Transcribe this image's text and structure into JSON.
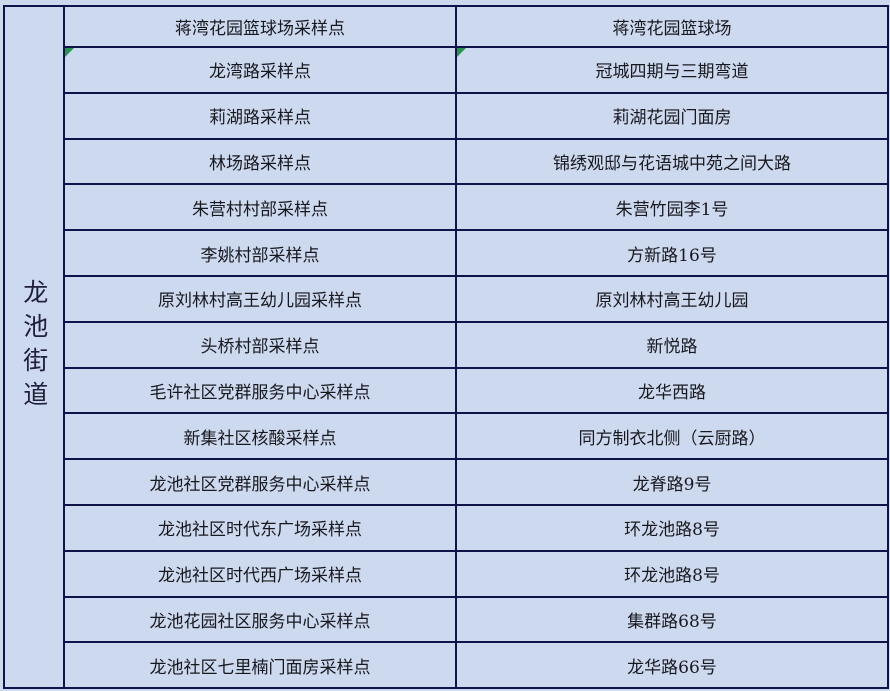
{
  "palette": {
    "background": "#cdd9ee",
    "border": "#10134a",
    "text": "#18181f",
    "marker_green": "#2a9350"
  },
  "table": {
    "row_header": {
      "text": "龙池街道"
    },
    "rows": [
      {
        "point": "蒋湾花园篮球场采样点",
        "location": "蒋湾花园篮球场",
        "marker": false
      },
      {
        "point": "龙湾路采样点",
        "location": "冠城四期与三期弯道",
        "marker": true
      },
      {
        "point": "莉湖路采样点",
        "location": "莉湖花园门面房",
        "marker": false
      },
      {
        "point": "林场路采样点",
        "location": "锦绣观邸与花语城中苑之间大路",
        "marker": false
      },
      {
        "point": "朱营村村部采样点",
        "location": "朱营竹园李1号",
        "marker": false
      },
      {
        "point": "李姚村部采样点",
        "location": "方新路16号",
        "marker": false
      },
      {
        "point": "原刘林村高王幼儿园采样点",
        "location": "原刘林村高王幼儿园",
        "marker": false
      },
      {
        "point": "头桥村部采样点",
        "location": "新悦路",
        "marker": false
      },
      {
        "point": "毛许社区党群服务中心采样点",
        "location": "龙华西路",
        "marker": false
      },
      {
        "point": "新集社区核酸采样点",
        "location": "同方制衣北侧（云厨路）",
        "marker": false
      },
      {
        "point": "龙池社区党群服务中心采样点",
        "location": "龙脊路9号",
        "marker": false
      },
      {
        "point": "龙池社区时代东广场采样点",
        "location": "环龙池路8号",
        "marker": false
      },
      {
        "point": "龙池社区时代西广场采样点",
        "location": "环龙池路8号",
        "marker": false
      },
      {
        "point": "龙池花园社区服务中心采样点",
        "location": "集群路68号",
        "marker": false
      },
      {
        "point": "龙池社区七里楠门面房采样点",
        "location": "龙华路66号",
        "marker": false
      }
    ]
  }
}
